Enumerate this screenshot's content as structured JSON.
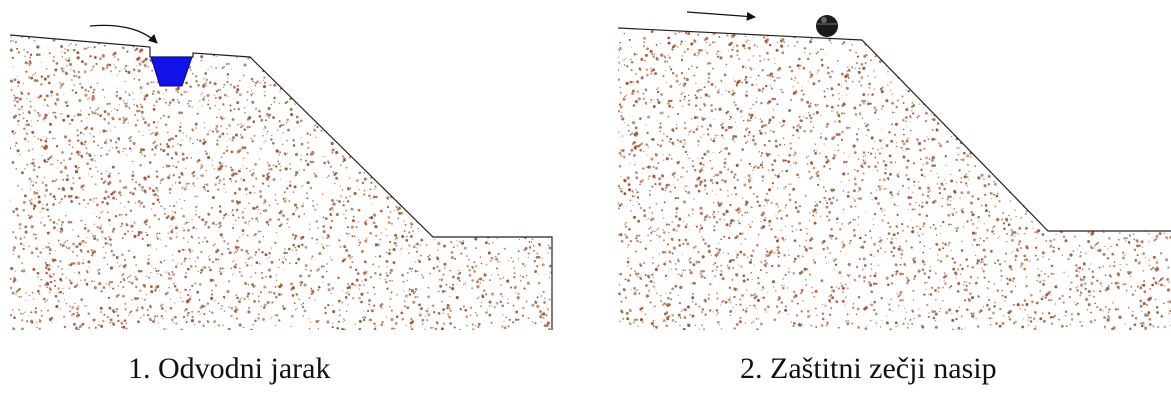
{
  "panels": [
    {
      "caption": "1. Odvodni jarak",
      "feature": "drainage-ditch"
    },
    {
      "caption": "2. Zaštitni zečji nasip",
      "feature": "sandbag-dike"
    }
  ],
  "colors": {
    "soil_speckle": "#a0522d",
    "outline": "#222222",
    "ditch_water": "#1212e8",
    "sandbag": "#1a1a1a",
    "background": "#ffffff"
  }
}
